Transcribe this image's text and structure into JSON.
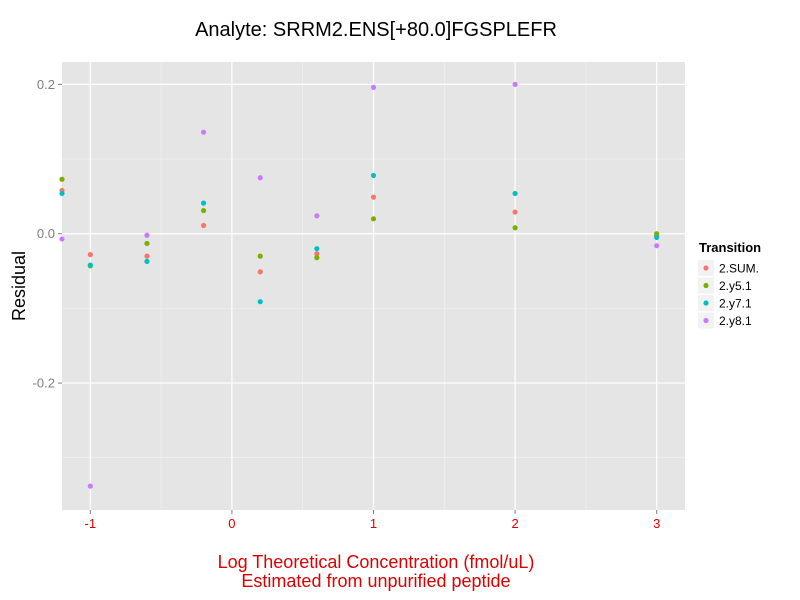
{
  "chart_data": {
    "type": "scatter",
    "title": "Analyte: SRRM2.ENS[+80.0]FGSPLEFR",
    "xlabel": [
      "Log Theoretical Concentration (fmol/uL)",
      "Estimated from unpurified peptide"
    ],
    "ylabel": "Residual",
    "xlim": [
      -1.2,
      3.2
    ],
    "ylim": [
      -0.37,
      0.23
    ],
    "x_ticks": [
      -1,
      0,
      1,
      2,
      3
    ],
    "x_tick_labels": [
      "-1",
      "0",
      "1",
      "2",
      "3"
    ],
    "y_ticks": [
      -0.2,
      0.0,
      0.2
    ],
    "y_tick_labels": [
      "-0.2",
      "0.0",
      "0.2"
    ],
    "grid": true,
    "axis_text_color": "#dd0000",
    "legend": {
      "title": "Transition",
      "placement": "right"
    },
    "series": [
      {
        "name": "2.SUM.",
        "color": "#f8766d",
        "points": [
          [
            -1.2,
            0.058
          ],
          [
            -1.0,
            -0.028
          ],
          [
            -0.6,
            -0.03
          ],
          [
            -0.2,
            0.011
          ],
          [
            0.2,
            -0.051
          ],
          [
            0.6,
            -0.027
          ],
          [
            1.0,
            0.049
          ],
          [
            2.0,
            0.029
          ],
          [
            3.0,
            -0.003
          ]
        ]
      },
      {
        "name": "2.y5.1",
        "color": "#7cae00",
        "points": [
          [
            -1.2,
            0.073
          ],
          [
            -1.0,
            -0.043
          ],
          [
            -0.6,
            -0.013
          ],
          [
            -0.2,
            0.031
          ],
          [
            0.2,
            -0.03
          ],
          [
            0.6,
            -0.032
          ],
          [
            1.0,
            0.02
          ],
          [
            2.0,
            0.008
          ],
          [
            3.0,
            0.0
          ]
        ]
      },
      {
        "name": "2.y7.1",
        "color": "#00bfc4",
        "points": [
          [
            -1.2,
            0.054
          ],
          [
            -1.0,
            -0.042
          ],
          [
            -0.6,
            -0.037
          ],
          [
            -0.2,
            0.041
          ],
          [
            0.2,
            -0.091
          ],
          [
            0.6,
            -0.02
          ],
          [
            1.0,
            0.078
          ],
          [
            2.0,
            0.054
          ],
          [
            3.0,
            -0.005
          ]
        ]
      },
      {
        "name": "2.y8.1",
        "color": "#c77cff",
        "points": [
          [
            -1.2,
            -0.007
          ],
          [
            -1.0,
            -0.338
          ],
          [
            -0.6,
            -0.002
          ],
          [
            -0.2,
            0.136
          ],
          [
            0.2,
            0.075
          ],
          [
            0.6,
            0.024
          ],
          [
            1.0,
            0.196
          ],
          [
            2.0,
            0.2
          ],
          [
            3.0,
            -0.016
          ]
        ]
      }
    ]
  }
}
